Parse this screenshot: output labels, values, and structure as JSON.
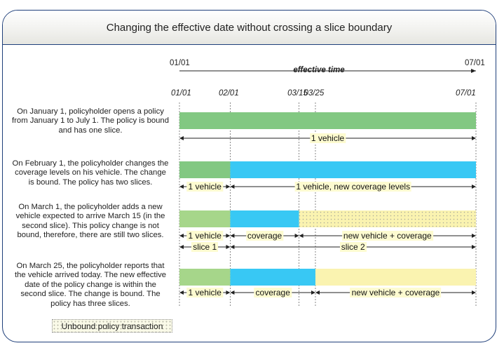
{
  "title": "Changing the effective date without crossing a slice boundary",
  "axis": {
    "start": "01/01",
    "end": "07/01",
    "label": "effective time",
    "ticks": [
      "01/01",
      "02/01",
      "03/15",
      "03/25",
      "07/01"
    ]
  },
  "scenarios": [
    {
      "description": "On January 1, policyholder opens a policy from January 1 to July 1. The policy is bound and has one slice.",
      "bars": [
        {
          "from": "01/01",
          "to": "07/01",
          "fill": "#82c882",
          "unbound": false
        }
      ],
      "labels": [
        {
          "text": "1 vehicle",
          "from": "01/01",
          "to": "07/01"
        }
      ]
    },
    {
      "description": "On February 1, the policyholder changes the coverage levels on his vehicle. The change is bound. The policy has two slices.",
      "bars": [
        {
          "from": "01/01",
          "to": "02/01",
          "fill": "#82c882",
          "unbound": false
        },
        {
          "from": "02/01",
          "to": "07/01",
          "fill": "#38c8f4",
          "unbound": false
        }
      ],
      "labels": [
        {
          "text": "1 vehicle",
          "from": "01/01",
          "to": "02/01"
        },
        {
          "text": "1 vehicle, new coverage levels",
          "from": "02/01",
          "to": "07/01"
        }
      ]
    },
    {
      "description": "On March 1, the policyholder adds a new vehicle expected to arrive March 15 (in the second slice). This policy change is not bound, therefore, there are still two slices.",
      "bars": [
        {
          "from": "01/01",
          "to": "02/01",
          "fill": "#a6d68a",
          "unbound": false
        },
        {
          "from": "02/01",
          "to": "03/15",
          "fill": "#38c8f4",
          "unbound": false
        },
        {
          "from": "03/15",
          "to": "07/01",
          "fill": "#faf3b0",
          "unbound": true
        }
      ],
      "labels": [
        {
          "text": "1 vehicle",
          "from": "01/01",
          "to": "02/01"
        },
        {
          "text": "coverage",
          "from": "02/01",
          "to": "03/15"
        },
        {
          "text": "new vehicle + coverage",
          "from": "03/15",
          "to": "07/01"
        }
      ],
      "slice_labels": [
        {
          "text": "slice 1",
          "from": "01/01",
          "to": "02/01"
        },
        {
          "text": "slice 2",
          "from": "02/01",
          "to": "07/01"
        }
      ]
    },
    {
      "description": "On March 25, the policyholder reports that the vehicle arrived today. The new effective date of the policy change is within the second slice. The change is bound. The policy has three slices.",
      "bars": [
        {
          "from": "01/01",
          "to": "02/01",
          "fill": "#a6d68a",
          "unbound": false
        },
        {
          "from": "02/01",
          "to": "03/25",
          "fill": "#38c8f4",
          "unbound": false
        },
        {
          "from": "03/25",
          "to": "07/01",
          "fill": "#faf3b0",
          "unbound": false
        }
      ],
      "labels": [
        {
          "text": "1 vehicle",
          "from": "01/01",
          "to": "02/01"
        },
        {
          "text": "coverage",
          "from": "02/01",
          "to": "03/25"
        },
        {
          "text": "new vehicle + coverage",
          "from": "03/25",
          "to": "07/01"
        }
      ]
    }
  ],
  "legend": {
    "label": "Unbound policy transaction"
  }
}
